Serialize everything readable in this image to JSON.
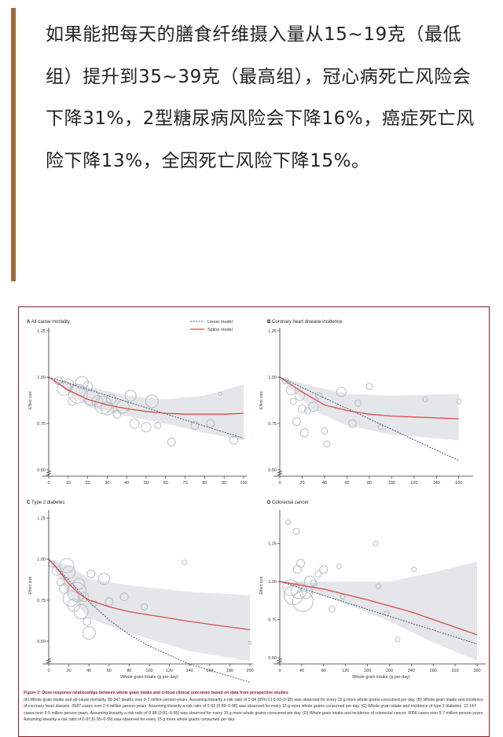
{
  "article": {
    "paragraph": "如果能把每天的膳食纤维摄入量从15~19克（最低组）提升到35~39克（最高组），冠心病死亡风险会下降31%，2型糖尿病风险会下降16%，癌症死亡风险下降13%，全因死亡风险下降15%。"
  },
  "figure": {
    "caption_title": "Figure 2: Dose-response relationships between whole grain intake and critical clinical outcomes based on data from prospective studies",
    "caption_body": "(A) Whole grain intake and all-cause mortality. 88 347 deaths over 8·2 million person-years. Assuming linearity a risk ratio of 0·94 (95% CI 0·92–0·95) was observed for every 15 g more whole grains consumed per day. (B) Whole grain intake and incidence of coronary heart disease. 6587 cases over 2·4 million person-years. Assuming linearity a risk ratio of 0·93 (0·89–0·98) was observed for every 15 g more whole grains consumed per day. (C) Whole grain intake and incidence of type 2 diabetes. 13 147 cases over 3·5 million person-years. Assuming linearity a risk ratio of 0·88 (0·81–0·95) was observed for every 15 g more whole grains consumed per day. (D) Whole grain intake and incidence of colorectal cancer. 6056 cases over 5·7 million person-years. Assuming linearity a risk ratio of 0·97 (0·95–0·99) was observed for every 15 g more whole grains consumed per day.",
    "legend": {
      "linear": "Linear model",
      "spline": "Spline model"
    },
    "colors": {
      "spline": "#d94a4a",
      "linear": "#4a5a7a",
      "band": "#e4e6e9",
      "bubble": "#b9bcc2",
      "frame": "#8a1e2a"
    }
  },
  "chart_data": [
    {
      "type": "scatter",
      "panel": "A",
      "title": "All-cause mortality",
      "xlabel": "",
      "ylabel": "Effect size",
      "xlim": [
        0,
        100
      ],
      "ylim": [
        0.5,
        1.25
      ],
      "xticks": [
        0,
        10,
        20,
        30,
        40,
        50,
        60,
        70,
        80,
        90,
        100
      ],
      "yticks": [
        0.5,
        0.75,
        1.0,
        1.25
      ],
      "ytick_labels": [
        "0.50",
        "0.75",
        "1.00",
        "1.25"
      ],
      "linear": [
        [
          0,
          1.0
        ],
        [
          100,
          0.67
        ]
      ],
      "spline": [
        [
          0,
          1.0
        ],
        [
          10,
          0.93
        ],
        [
          20,
          0.88
        ],
        [
          30,
          0.85
        ],
        [
          40,
          0.83
        ],
        [
          50,
          0.815
        ],
        [
          60,
          0.805
        ],
        [
          70,
          0.8
        ],
        [
          80,
          0.8
        ],
        [
          90,
          0.8
        ],
        [
          100,
          0.805
        ]
      ],
      "ci_upper": [
        [
          0,
          1.0
        ],
        [
          20,
          0.95
        ],
        [
          40,
          0.9
        ],
        [
          60,
          0.88
        ],
        [
          80,
          0.9
        ],
        [
          100,
          0.96
        ]
      ],
      "ci_lower": [
        [
          0,
          1.0
        ],
        [
          20,
          0.84
        ],
        [
          40,
          0.79
        ],
        [
          60,
          0.75
        ],
        [
          80,
          0.7
        ],
        [
          100,
          0.66
        ]
      ],
      "points": [
        [
          5,
          0.98,
          5
        ],
        [
          8,
          0.94,
          9
        ],
        [
          10,
          0.96,
          7
        ],
        [
          12,
          0.87,
          5
        ],
        [
          15,
          0.91,
          12
        ],
        [
          17,
          0.97,
          8
        ],
        [
          20,
          0.95,
          6
        ],
        [
          22,
          0.89,
          10
        ],
        [
          25,
          0.87,
          7
        ],
        [
          28,
          0.85,
          11
        ],
        [
          30,
          0.83,
          8
        ],
        [
          32,
          0.88,
          6
        ],
        [
          35,
          0.8,
          5
        ],
        [
          38,
          0.84,
          8
        ],
        [
          42,
          0.9,
          7
        ],
        [
          44,
          0.75,
          6
        ],
        [
          50,
          0.73,
          6
        ],
        [
          53,
          0.87,
          8
        ],
        [
          56,
          0.74,
          4
        ],
        [
          63,
          0.65,
          5
        ],
        [
          75,
          0.74,
          5
        ],
        [
          83,
          0.75,
          5
        ],
        [
          88,
          0.91,
          2
        ],
        [
          95,
          0.66,
          5
        ]
      ]
    },
    {
      "type": "scatter",
      "panel": "B",
      "title": "Coronary heart disease incidence",
      "xlabel": "",
      "ylabel": "Effect size",
      "xlim": [
        0,
        170
      ],
      "ylim": [
        0.5,
        1.25
      ],
      "xticks": [
        0,
        20,
        40,
        60,
        80,
        100,
        120,
        140,
        160
      ],
      "yticks": [
        0.5,
        0.75,
        1.0,
        1.25
      ],
      "ytick_labels": [
        "0.50",
        "0.75",
        "1.00",
        "1.25"
      ],
      "linear": [
        [
          0,
          1.0
        ],
        [
          160,
          0.55
        ]
      ],
      "spline": [
        [
          0,
          1.0
        ],
        [
          20,
          0.92
        ],
        [
          40,
          0.85
        ],
        [
          60,
          0.82
        ],
        [
          80,
          0.8
        ],
        [
          100,
          0.79
        ],
        [
          120,
          0.785
        ],
        [
          140,
          0.78
        ],
        [
          160,
          0.775
        ]
      ],
      "ci_upper": [
        [
          0,
          1.0
        ],
        [
          30,
          0.95
        ],
        [
          60,
          0.91
        ],
        [
          100,
          0.9
        ],
        [
          160,
          0.91
        ]
      ],
      "ci_lower": [
        [
          0,
          1.0
        ],
        [
          30,
          0.82
        ],
        [
          60,
          0.74
        ],
        [
          100,
          0.69
        ],
        [
          160,
          0.66
        ]
      ],
      "points": [
        [
          5,
          0.98,
          4
        ],
        [
          10,
          0.93,
          6
        ],
        [
          12,
          0.87,
          4
        ],
        [
          15,
          0.76,
          5
        ],
        [
          18,
          0.9,
          6
        ],
        [
          20,
          0.83,
          5
        ],
        [
          22,
          0.7,
          5
        ],
        [
          25,
          0.82,
          4
        ],
        [
          30,
          0.84,
          6
        ],
        [
          35,
          0.9,
          4
        ],
        [
          40,
          0.71,
          4
        ],
        [
          42,
          0.64,
          4
        ],
        [
          55,
          0.92,
          6
        ],
        [
          65,
          0.75,
          5
        ],
        [
          70,
          0.86,
          4
        ],
        [
          80,
          0.95,
          4
        ],
        [
          90,
          0.73,
          3
        ],
        [
          130,
          0.88,
          3
        ],
        [
          160,
          0.87,
          3
        ]
      ]
    },
    {
      "type": "scatter",
      "panel": "C",
      "title": "Type 2 diabetes",
      "xlabel": "Whole grain intake (g per day)",
      "ylabel": "Effect size",
      "xlim": [
        0,
        200
      ],
      "ylim": [
        0.4,
        1.28
      ],
      "xticks": [
        0,
        20,
        40,
        60,
        80,
        100,
        120,
        140,
        160,
        180,
        200
      ],
      "yticks": [
        0.5,
        0.75,
        1.0,
        1.25
      ],
      "ytick_labels": [
        "0.50",
        "0.75",
        "1.00",
        "1.25"
      ],
      "linear": [
        [
          0,
          1.0
        ],
        [
          20,
          0.87
        ],
        [
          40,
          0.74
        ],
        [
          60,
          0.63
        ],
        [
          80,
          0.54
        ],
        [
          100,
          0.47
        ],
        [
          140,
          0.36
        ],
        [
          200,
          0.25
        ]
      ],
      "spline": [
        [
          0,
          1.0
        ],
        [
          10,
          0.93
        ],
        [
          20,
          0.85
        ],
        [
          30,
          0.79
        ],
        [
          40,
          0.75
        ],
        [
          60,
          0.71
        ],
        [
          80,
          0.68
        ],
        [
          100,
          0.66
        ],
        [
          140,
          0.62
        ],
        [
          200,
          0.57
        ]
      ],
      "ci_upper": [
        [
          0,
          1.0
        ],
        [
          20,
          0.96
        ],
        [
          40,
          0.88
        ],
        [
          80,
          0.84
        ],
        [
          140,
          0.8
        ],
        [
          200,
          0.78
        ]
      ],
      "ci_lower": [
        [
          0,
          1.0
        ],
        [
          20,
          0.78
        ],
        [
          40,
          0.64
        ],
        [
          80,
          0.55
        ],
        [
          140,
          0.44
        ],
        [
          200,
          0.38
        ]
      ],
      "points": [
        [
          3,
          0.97,
          4
        ],
        [
          8,
          0.93,
          6
        ],
        [
          12,
          0.86,
          5
        ],
        [
          15,
          0.82,
          6
        ],
        [
          18,
          0.96,
          9
        ],
        [
          20,
          0.92,
          8
        ],
        [
          22,
          0.76,
          10
        ],
        [
          25,
          0.72,
          8
        ],
        [
          28,
          0.8,
          12
        ],
        [
          30,
          0.85,
          7
        ],
        [
          32,
          0.68,
          9
        ],
        [
          35,
          0.77,
          6
        ],
        [
          38,
          0.62,
          5
        ],
        [
          40,
          0.55,
          8
        ],
        [
          42,
          0.91,
          5
        ],
        [
          45,
          0.73,
          4
        ],
        [
          55,
          0.88,
          7
        ],
        [
          60,
          0.74,
          5
        ],
        [
          75,
          0.77,
          5
        ],
        [
          95,
          0.71,
          4
        ],
        [
          135,
          0.98,
          3
        ],
        [
          200,
          0.49,
          2
        ]
      ]
    },
    {
      "type": "scatter",
      "panel": "D",
      "title": "Colorectal cancer",
      "xlabel": "Whole grain intake (g per day)",
      "ylabel": "Effect size",
      "xlim": [
        0,
        370
      ],
      "ylim": [
        0.5,
        1.45
      ],
      "xticks": [
        0,
        40,
        80,
        120,
        160,
        200,
        240,
        280,
        320,
        360
      ],
      "yticks": [
        0.5,
        0.75,
        1.0,
        1.25
      ],
      "ytick_labels": [
        "0.50",
        "0.75",
        "1.00",
        "1.25"
      ],
      "linear": [
        [
          0,
          1.0
        ],
        [
          360,
          0.59
        ]
      ],
      "spline": [
        [
          0,
          1.0
        ],
        [
          80,
          0.95
        ],
        [
          160,
          0.88
        ],
        [
          240,
          0.8
        ],
        [
          320,
          0.7
        ],
        [
          360,
          0.65
        ]
      ],
      "ci_upper": [
        [
          0,
          1.0
        ],
        [
          100,
          1.0
        ],
        [
          200,
          1.0
        ],
        [
          280,
          1.06
        ],
        [
          360,
          1.13
        ]
      ],
      "ci_lower": [
        [
          0,
          1.0
        ],
        [
          100,
          0.88
        ],
        [
          200,
          0.74
        ],
        [
          280,
          0.6
        ],
        [
          360,
          0.48
        ]
      ],
      "points": [
        [
          15,
          1.39,
          3
        ],
        [
          20,
          0.96,
          10
        ],
        [
          25,
          0.91,
          12
        ],
        [
          30,
          1.33,
          4
        ],
        [
          32,
          1.08,
          5
        ],
        [
          35,
          0.94,
          10
        ],
        [
          38,
          1.12,
          5
        ],
        [
          42,
          0.87,
          13
        ],
        [
          48,
          0.93,
          8
        ],
        [
          55,
          1.0,
          7
        ],
        [
          62,
          0.99,
          4
        ],
        [
          70,
          1.05,
          4
        ],
        [
          80,
          1.08,
          5
        ],
        [
          95,
          0.82,
          4
        ],
        [
          108,
          1.1,
          3
        ],
        [
          115,
          0.9,
          3
        ],
        [
          175,
          1.25,
          3
        ],
        [
          180,
          0.97,
          3
        ],
        [
          195,
          0.79,
          3
        ],
        [
          215,
          0.62,
          3
        ],
        [
          245,
          1.08,
          3
        ]
      ]
    }
  ]
}
